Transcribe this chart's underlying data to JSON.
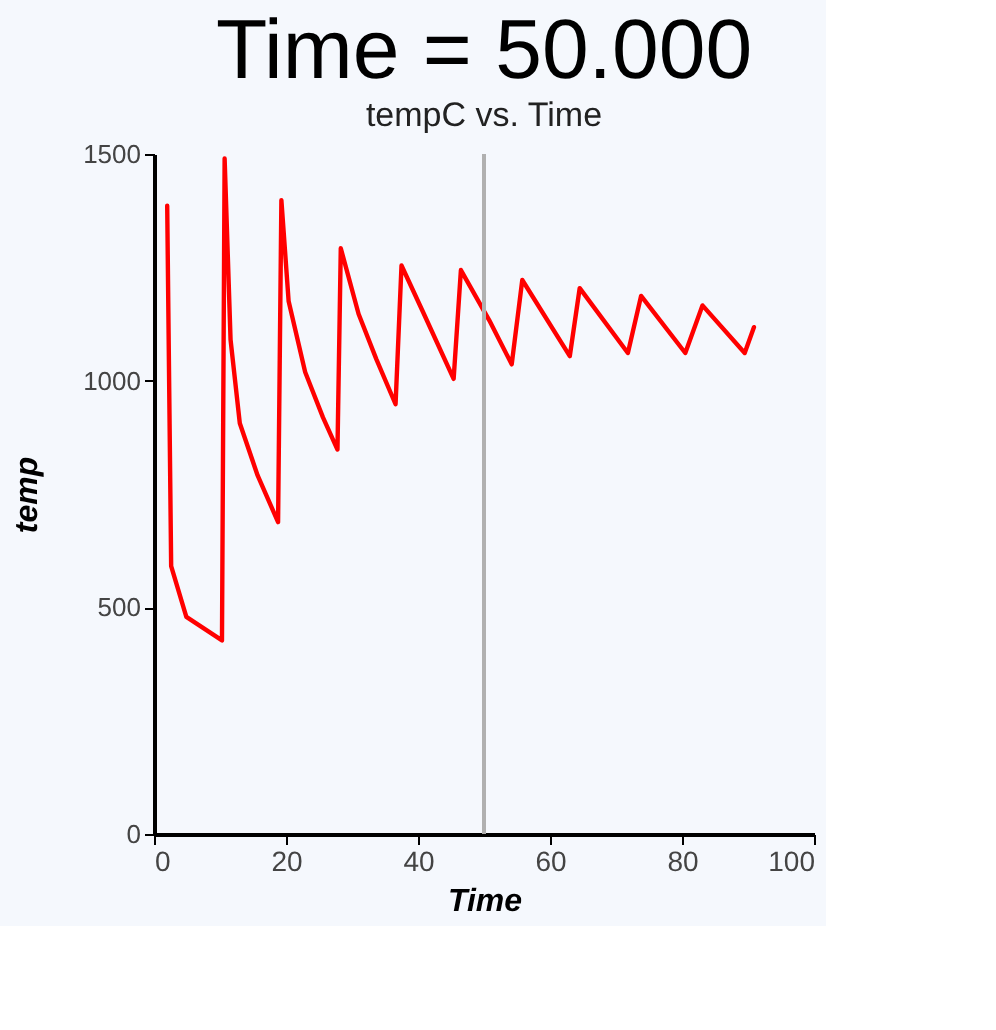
{
  "chart_data": {
    "type": "line",
    "title": "Time = 50.000",
    "subtitle": "tempC vs. Time",
    "xlabel": "Time",
    "ylabel": "temp",
    "x": [
      2.0,
      2.6,
      4.9,
      10.3,
      10.7,
      11.6,
      13.0,
      15.7,
      18.8,
      19.3,
      20.4,
      22.9,
      25.6,
      27.8,
      28.3,
      31.0,
      33.7,
      36.6,
      37.5,
      40.9,
      45.4,
      46.5,
      50.8,
      54.2,
      55.8,
      63.0,
      64.5,
      71.8,
      73.8,
      80.5,
      83.1,
      89.5,
      90.9
    ],
    "series": [
      {
        "color": "#ff0000",
        "values": [
          1386,
          591,
          479,
          427,
          1490,
          1090,
          906,
          791,
          688,
          1398,
          1175,
          1019,
          919,
          848,
          1292,
          1147,
          1047,
          948,
          1254,
          1147,
          1004,
          1244,
          1133,
          1036,
          1222,
          1054,
          1204,
          1061,
          1187,
          1061,
          1166,
          1061,
          1118
        ]
      }
    ],
    "xlim": [
      0,
      100
    ],
    "xticks": [
      0,
      20,
      40,
      60,
      80,
      100
    ],
    "ylim": [
      0,
      1500
    ],
    "yticks": [
      0,
      500,
      1000,
      1500
    ],
    "ref_lines": [
      {
        "axis": "x",
        "value": 50,
        "color": "#b0b0b0"
      }
    ],
    "grid": false,
    "marker": "none",
    "line_style": "solid"
  }
}
